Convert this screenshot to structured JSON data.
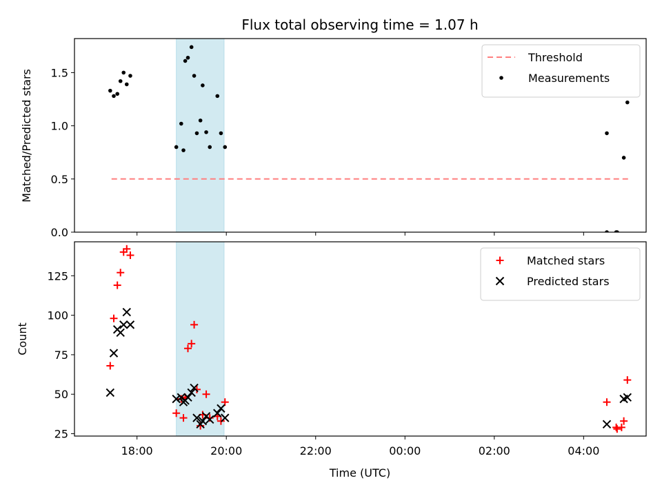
{
  "chart_data": {
    "title": "Flux total observing time = 1.07 h",
    "xlabel": "Time (UTC)",
    "x_unit": "hours since 2020-01-01 00:00 UTC (times after midnight are >24)",
    "xlim": [
      16.6,
      29.4
    ],
    "xticks": [
      {
        "value": 18,
        "label": "18:00"
      },
      {
        "value": 20,
        "label": "20:00"
      },
      {
        "value": 22,
        "label": "22:00"
      },
      {
        "value": 24,
        "label": "00:00"
      },
      {
        "value": 26,
        "label": "02:00"
      },
      {
        "value": 28,
        "label": "04:00"
      }
    ],
    "shaded_region": {
      "x0": 18.88,
      "x1": 19.95,
      "color": "#add8e6"
    },
    "panels": [
      {
        "type": "scatter",
        "ylabel": "Matched/Predicted stars",
        "ylim": [
          0,
          1.82
        ],
        "yticks": [
          0.0,
          0.5,
          1.0,
          1.5
        ],
        "ytick_labels": [
          "0.0",
          "0.5",
          "1.0",
          "1.5"
        ],
        "legend_position": "upper right",
        "series": [
          {
            "name": "Threshold",
            "kind": "dashed-line",
            "color": "#ff7f7f",
            "x": [
              17.43,
              29.07
            ],
            "y": [
              0.5,
              0.5
            ]
          },
          {
            "name": "Measurements",
            "kind": "dots",
            "color": "#000000",
            "x": [
              17.4,
              17.48,
              17.56,
              17.63,
              17.7,
              17.77,
              17.85,
              18.88,
              18.99,
              19.04,
              19.08,
              19.14,
              19.22,
              19.28,
              19.34,
              19.42,
              19.47,
              19.55,
              19.63,
              19.8,
              19.88,
              19.97,
              28.52,
              28.52,
              28.73,
              28.75,
              28.9,
              28.98
            ],
            "y": [
              1.33,
              1.28,
              1.3,
              1.42,
              1.5,
              1.39,
              1.47,
              0.8,
              1.02,
              0.77,
              1.61,
              1.64,
              1.74,
              1.47,
              0.93,
              1.05,
              1.38,
              0.94,
              0.8,
              1.28,
              0.93,
              0.8,
              0.0,
              0.93,
              0.0,
              0.0,
              0.7,
              1.22
            ]
          }
        ]
      },
      {
        "type": "scatter",
        "ylabel": "Count",
        "ylim": [
          23.5,
          146.5
        ],
        "yticks": [
          25,
          50,
          75,
          100,
          125
        ],
        "ytick_labels": [
          "25",
          "50",
          "75",
          "100",
          "125"
        ],
        "legend_position": "upper right",
        "series": [
          {
            "name": "Matched stars",
            "kind": "plus",
            "color": "#ff0000",
            "x": [
              17.4,
              17.48,
              17.56,
              17.63,
              17.7,
              17.77,
              17.85,
              18.88,
              18.99,
              19.04,
              19.08,
              19.14,
              19.22,
              19.28,
              19.34,
              19.42,
              19.47,
              19.55,
              19.63,
              19.8,
              19.88,
              19.97,
              28.52,
              28.73,
              28.75,
              28.85,
              28.9,
              28.98
            ],
            "y": [
              68,
              98,
              119,
              127,
              140,
              142,
              138,
              38,
              47,
              35,
              48,
              79,
              82,
              94,
              53,
              30,
              37,
              50,
              35,
              36,
              33,
              45,
              45,
              29,
              28,
              29,
              33,
              59
            ]
          },
          {
            "name": "Predicted stars",
            "kind": "x",
            "color": "#000000",
            "x": [
              17.4,
              17.48,
              17.56,
              17.63,
              17.7,
              17.77,
              17.85,
              18.88,
              18.99,
              19.04,
              19.08,
              19.14,
              19.22,
              19.28,
              19.34,
              19.42,
              19.47,
              19.55,
              19.63,
              19.8,
              19.88,
              19.97,
              28.52,
              28.9,
              28.98
            ],
            "y": [
              51,
              76,
              91,
              89,
              94,
              102,
              94,
              47,
              48,
              45,
              46,
              48,
              51,
              54,
              35,
              31,
              33,
              36,
              34,
              38,
              41,
              35,
              31,
              47,
              48
            ]
          }
        ]
      }
    ]
  }
}
